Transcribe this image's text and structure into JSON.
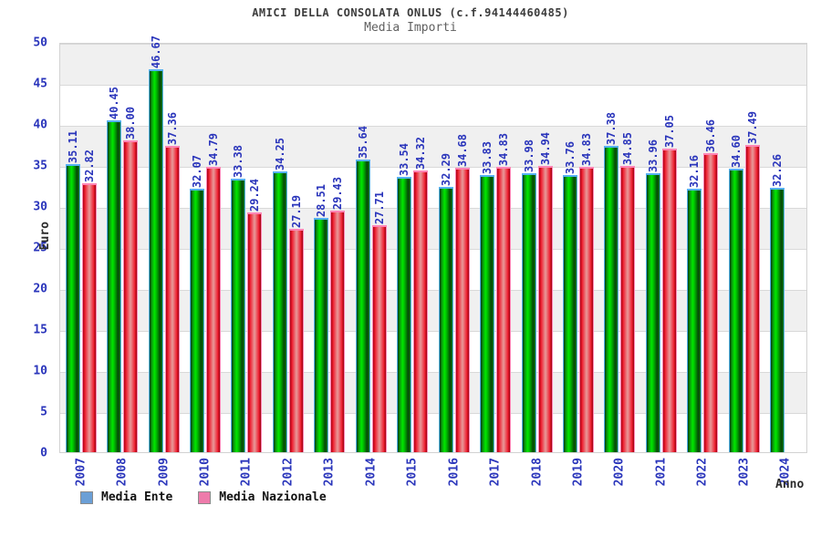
{
  "title": "AMICI DELLA CONSOLATA ONLUS (c.f.94144460485)",
  "subtitle": "Media Importi",
  "axes": {
    "y_label": "Euro",
    "x_label": "Anno",
    "y_ticks": [
      0,
      5,
      10,
      15,
      20,
      25,
      30,
      35,
      40,
      45,
      50
    ]
  },
  "legend": [
    {
      "label": "Media Ente",
      "swatch_color": "#6b9fd6"
    },
    {
      "label": "Media Nazionale",
      "swatch_color": "#ee7bab"
    }
  ],
  "colors": {
    "bar_green_main": "#00cc00",
    "bar_green_outline": "#55b1f2",
    "bar_red_main": "#ee1c2e",
    "bar_red_outline": "#ff85b5",
    "value_label_blue": "#2a35bb",
    "axis_tick_blue": "#2a35bb",
    "band_gray": "#f0f0f0",
    "title_gray": "#3c3c3c"
  },
  "chart_data": {
    "type": "bar",
    "title": "AMICI DELLA CONSOLATA ONLUS (c.f.94144460485)",
    "subtitle": "Media Importi",
    "xlabel": "Anno",
    "ylabel": "Euro",
    "ylim": [
      0,
      50
    ],
    "ytick_step": 5,
    "grid": "horizontal-bands",
    "legend_position": "bottom-left",
    "categories": [
      "2007",
      "2008",
      "2009",
      "2010",
      "2011",
      "2012",
      "2013",
      "2014",
      "2015",
      "2016",
      "2017",
      "2018",
      "2019",
      "2020",
      "2021",
      "2022",
      "2023",
      "2024"
    ],
    "series": [
      {
        "name": "Media Ente",
        "bar_color": "green",
        "values": [
          35.11,
          40.45,
          46.67,
          32.07,
          33.38,
          34.25,
          28.51,
          35.64,
          33.54,
          32.29,
          33.83,
          33.98,
          33.76,
          37.38,
          33.96,
          32.16,
          34.6,
          32.26
        ],
        "value_labels": [
          "35.11",
          "40.45",
          "46.67",
          "32.07",
          "33.38",
          "34.25",
          "28.51",
          "35.64",
          "33.54",
          "32.29",
          "33.83",
          "33.98",
          "33.76",
          "37.38",
          "33.96",
          "32.16",
          "34.60",
          "32.26"
        ]
      },
      {
        "name": "Media Nazionale",
        "bar_color": "red",
        "values": [
          32.82,
          38.0,
          37.36,
          34.79,
          29.24,
          27.19,
          29.43,
          27.71,
          34.32,
          34.68,
          34.83,
          34.94,
          34.83,
          34.85,
          37.05,
          36.46,
          37.49,
          null
        ],
        "value_labels": [
          "32.82",
          "38.00",
          "37.36",
          "34.79",
          "29.24",
          "27.19",
          "29.43",
          "27.71",
          "34.32",
          "34.68",
          "34.83",
          "34.94",
          "34.83",
          "34.85",
          "37.05",
          "36.46",
          "37.49",
          null
        ]
      }
    ]
  }
}
